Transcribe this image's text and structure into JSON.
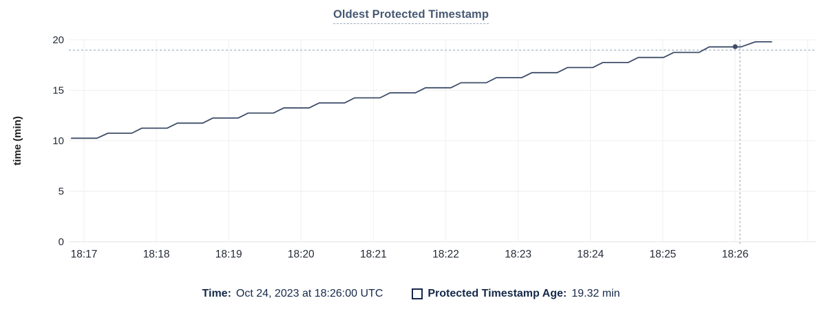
{
  "chart": {
    "title": "Oldest Protected Timestamp",
    "y_axis_label": "time (min)"
  },
  "footer": {
    "time_label": "Time:",
    "time_value": "Oct 24, 2023 at 18:26:00 UTC",
    "series_label": "Protected Timestamp Age:",
    "series_value": "19.32 min"
  },
  "colors": {
    "title": "#475872",
    "line": "#3d4c68",
    "dot": "#3d4c68",
    "legend_text": "#152849",
    "crosshair": "#9fb2c1",
    "gridline": "#efefef",
    "axis_baseline": "#e0e0e0",
    "tick_text": "#242a35",
    "y_axis_label_text": "#1f1f1f"
  },
  "chart_data": {
    "type": "line",
    "title": "Oldest Protected Timestamp",
    "xlabel": "",
    "ylabel": "time (min)",
    "ylim": [
      0,
      20
    ],
    "y_ticks": [
      0,
      5,
      10,
      15,
      20
    ],
    "x_tick_labels": [
      "18:17",
      "18:18",
      "18:19",
      "18:20",
      "18:21",
      "18:22",
      "18:23",
      "18:24",
      "18:25",
      "18:26"
    ],
    "x_unit": "minutes offset from 18:17",
    "grid": true,
    "legend_position": "bottom",
    "series": [
      {
        "name": "Protected Timestamp Age",
        "unit": "min",
        "points": [
          [
            -0.18,
            10.25
          ],
          [
            0.18,
            10.25
          ],
          [
            0.33,
            10.75
          ],
          [
            0.66,
            10.75
          ],
          [
            0.8,
            11.25
          ],
          [
            1.15,
            11.25
          ],
          [
            1.29,
            11.75
          ],
          [
            1.64,
            11.75
          ],
          [
            1.78,
            12.25
          ],
          [
            2.13,
            12.25
          ],
          [
            2.27,
            12.75
          ],
          [
            2.62,
            12.75
          ],
          [
            2.76,
            13.25
          ],
          [
            3.11,
            13.25
          ],
          [
            3.25,
            13.75
          ],
          [
            3.6,
            13.75
          ],
          [
            3.74,
            14.25
          ],
          [
            4.09,
            14.25
          ],
          [
            4.23,
            14.75
          ],
          [
            4.58,
            14.75
          ],
          [
            4.72,
            15.25
          ],
          [
            5.07,
            15.25
          ],
          [
            5.21,
            15.75
          ],
          [
            5.56,
            15.75
          ],
          [
            5.7,
            16.25
          ],
          [
            6.05,
            16.25
          ],
          [
            6.19,
            16.75
          ],
          [
            6.54,
            16.75
          ],
          [
            6.68,
            17.25
          ],
          [
            7.03,
            17.25
          ],
          [
            7.17,
            17.75
          ],
          [
            7.52,
            17.75
          ],
          [
            7.66,
            18.25
          ],
          [
            8.01,
            18.25
          ],
          [
            8.15,
            18.75
          ],
          [
            8.5,
            18.75
          ],
          [
            8.64,
            19.3
          ],
          [
            9.08,
            19.3
          ],
          [
            9.28,
            19.8
          ],
          [
            9.51,
            19.8
          ]
        ]
      }
    ],
    "hover": {
      "time": "Oct 24, 2023 at 18:26:00 UTC",
      "x_tick": "18:26",
      "x_offset": 9.0,
      "value": 19.32
    }
  }
}
